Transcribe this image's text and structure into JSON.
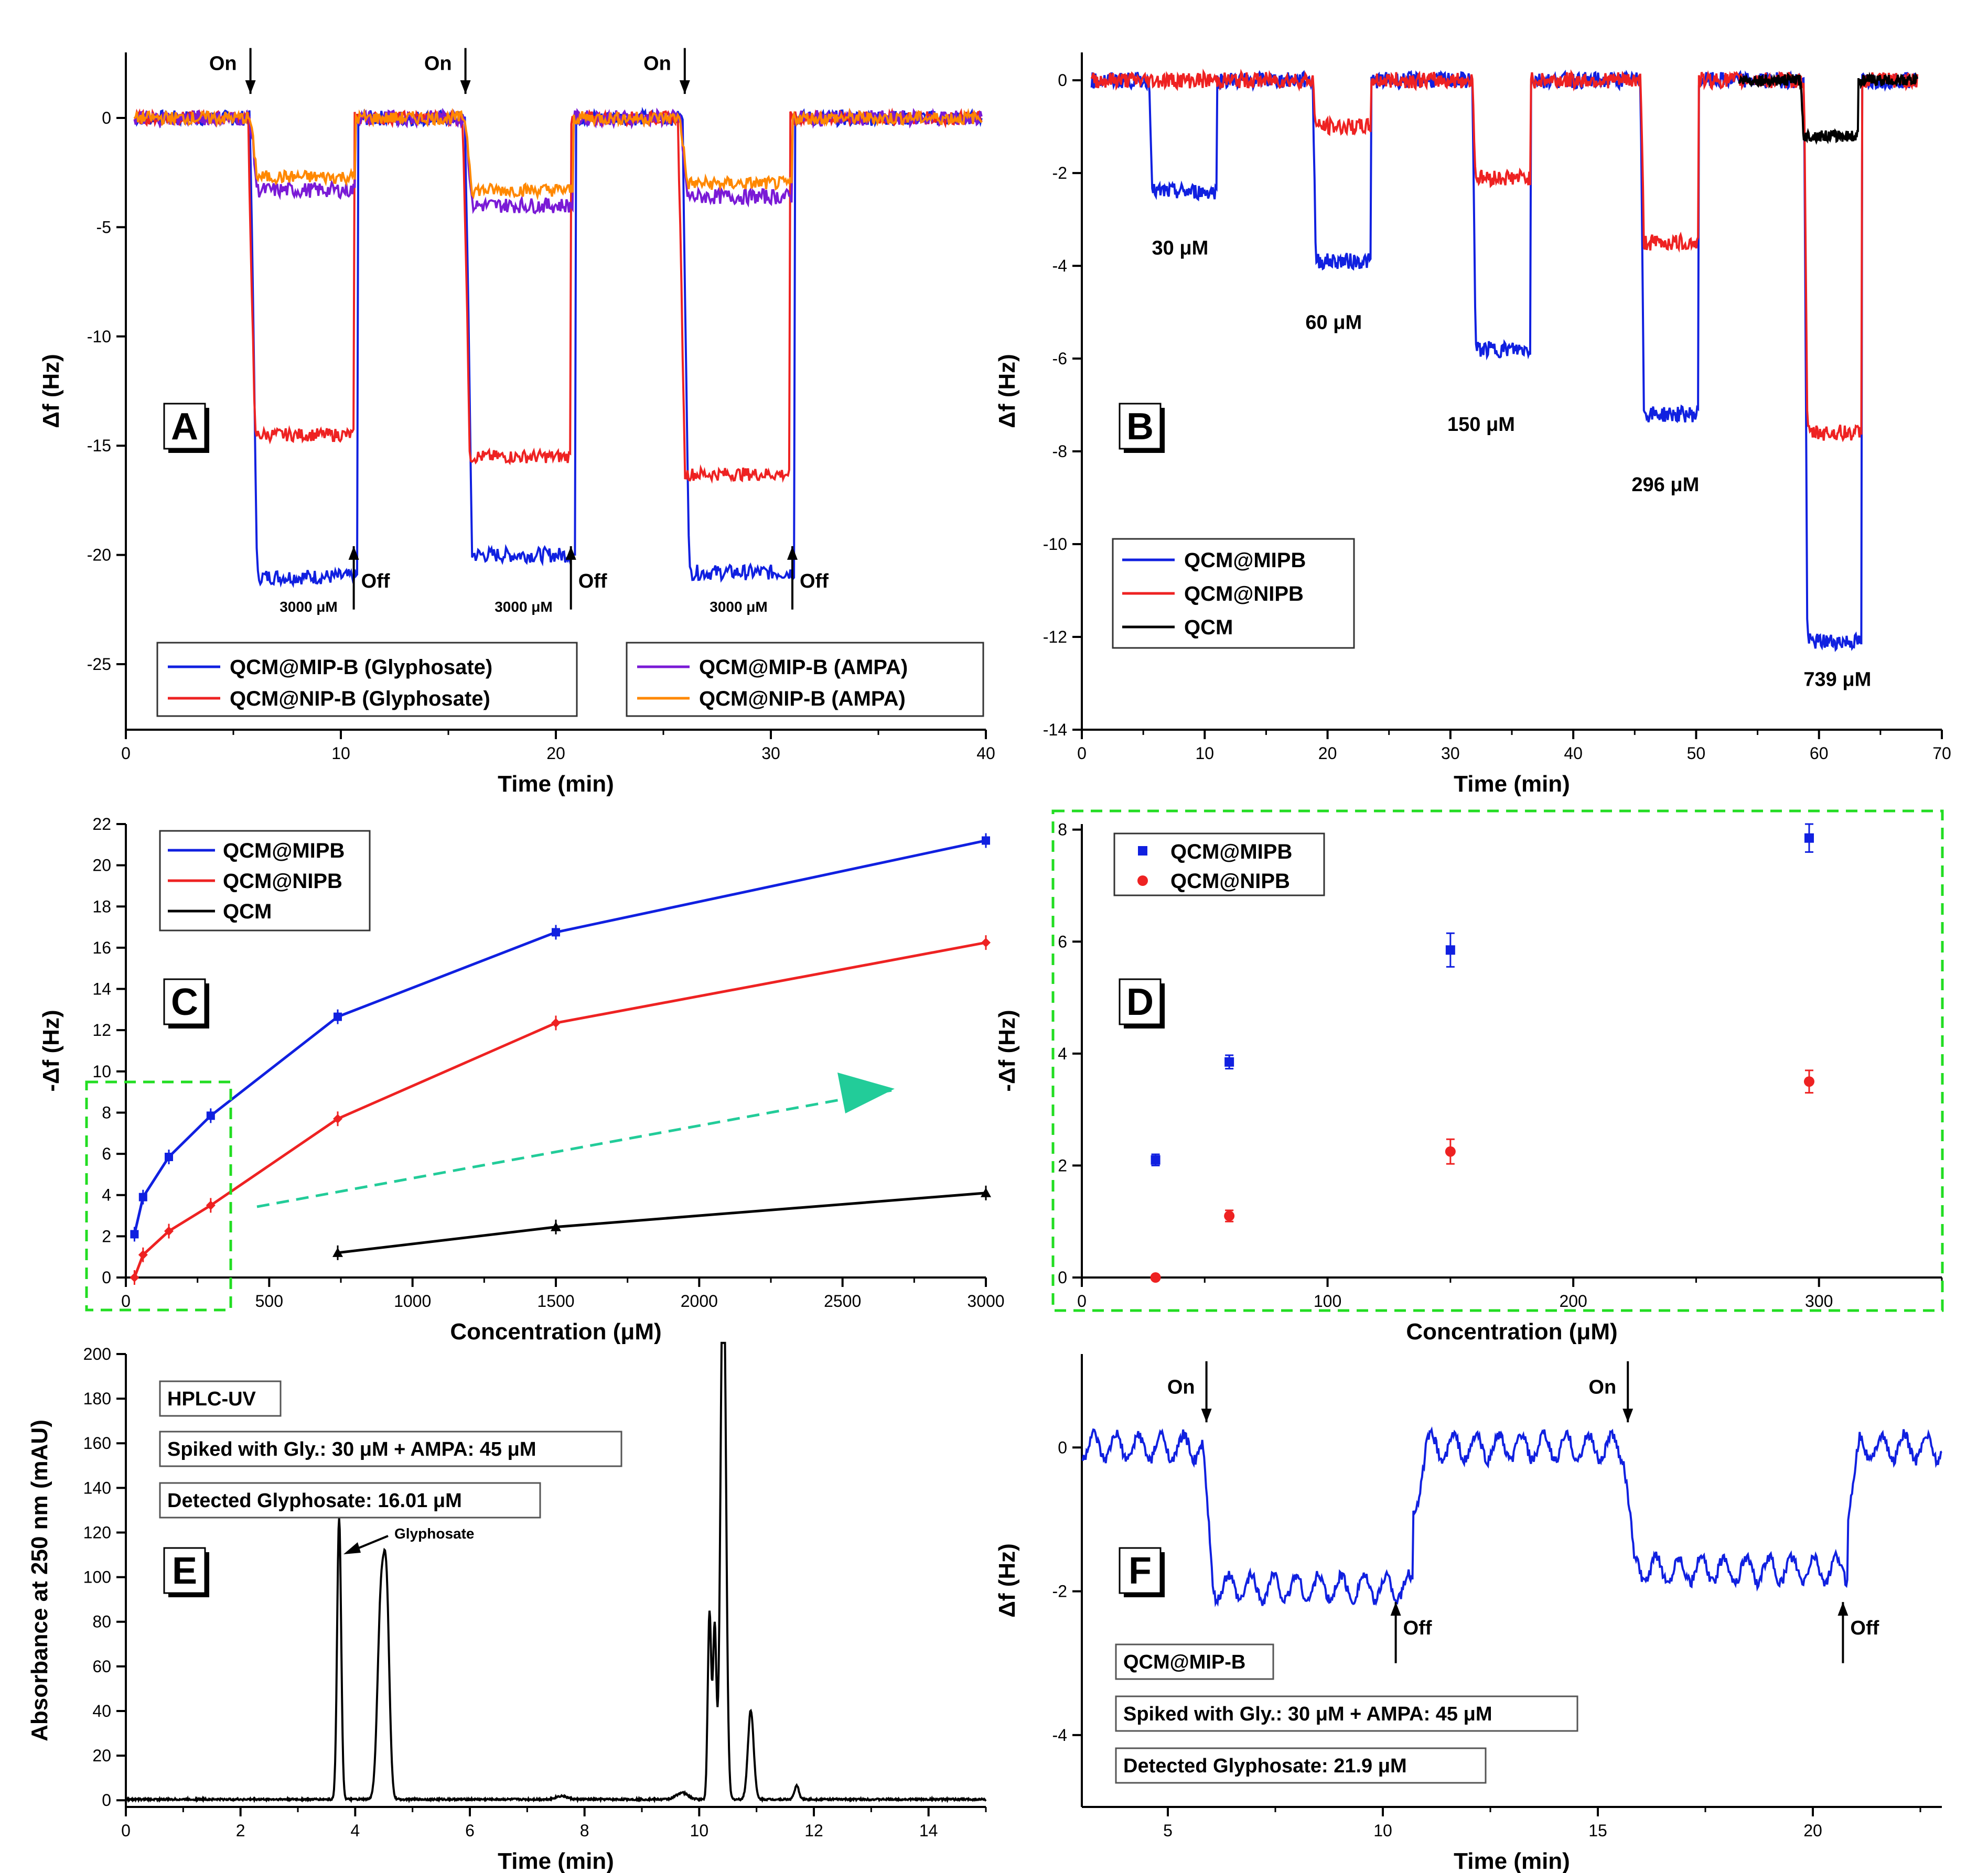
{
  "colors": {
    "blue": "#1020e0",
    "red": "#ee2222",
    "black": "#000000",
    "purple": "#7a1ad6",
    "orange": "#ff8800",
    "green_dash": "#22dd22",
    "arrow_teal": "#22cc99"
  },
  "panels": {
    "A": {
      "letter": "A",
      "xlabel": "Time (min)",
      "ylabel": "Δf (Hz)",
      "xlim": [
        0,
        40
      ],
      "ylim": [
        -28,
        3
      ],
      "xticks": [
        0,
        10,
        20,
        30,
        40
      ],
      "yticks": [
        0,
        -5,
        -10,
        -15,
        -20,
        -25
      ],
      "on_labels": [
        "On",
        "On",
        "On"
      ],
      "on_x": [
        5.6,
        15.6,
        25.8
      ],
      "off_labels": [
        "Off",
        "Off",
        "Off"
      ],
      "off_x": [
        10.6,
        20.7,
        31.0
      ],
      "conc_labels": [
        "3000 μM",
        "3000 μM",
        "3000 μM"
      ],
      "conc_x": [
        8.5,
        18.5,
        28.5
      ],
      "legend": [
        "QCM@MIP-B (Glyphosate)",
        "QCM@NIP-B (Glyphosate)",
        "QCM@MIP-B (AMPA)",
        "QCM@NIP-B (AMPA)"
      ],
      "series": [
        {
          "name": "QCM@MIP-B (Glyphosate)",
          "color": "blue",
          "baseline": 0,
          "pulses": [
            [
              5.8,
              10.8,
              -21
            ],
            [
              15.8,
              20.9,
              -20
            ],
            [
              25.9,
              31.1,
              -20.8
            ]
          ]
        },
        {
          "name": "QCM@NIP-B (Glyphosate)",
          "color": "red",
          "baseline": 0,
          "pulses": [
            [
              5.7,
              10.6,
              -14.5
            ],
            [
              15.7,
              20.7,
              -15.5
            ],
            [
              25.7,
              30.9,
              -16.3
            ]
          ]
        },
        {
          "name": "QCM@MIP-B (AMPA)",
          "color": "purple",
          "baseline": 0,
          "pulses": [
            [
              5.8,
              10.7,
              -3.3
            ],
            [
              15.8,
              20.8,
              -4.0
            ],
            [
              25.8,
              31.0,
              -3.6
            ]
          ]
        },
        {
          "name": "QCM@NIP-B (AMPA)",
          "color": "orange",
          "baseline": 0,
          "pulses": [
            [
              5.8,
              10.7,
              -2.7
            ],
            [
              15.8,
              20.8,
              -3.3
            ],
            [
              25.8,
              31.0,
              -3.0
            ]
          ]
        }
      ]
    },
    "B": {
      "letter": "B",
      "xlabel": "Time (min)",
      "ylabel": "Δf (Hz)",
      "xlim": [
        0,
        70
      ],
      "ylim": [
        -14,
        0.6
      ],
      "xticks": [
        0,
        10,
        20,
        30,
        40,
        50,
        60,
        70
      ],
      "yticks": [
        0,
        -2,
        -4,
        -6,
        -8,
        -10,
        -12,
        -14
      ],
      "conc_labels": [
        "30 μM",
        "60 μM",
        "150 μM",
        "296 μM",
        "739 μM"
      ],
      "conc_pos": [
        [
          8,
          -3.6
        ],
        [
          20.5,
          -5.2
        ],
        [
          32.5,
          -7.4
        ],
        [
          47.5,
          -8.7
        ],
        [
          61.5,
          -12.9
        ]
      ],
      "legend": [
        "QCM@MIPB",
        "QCM@NIPB",
        "QCM"
      ],
      "series": [
        {
          "name": "QCM@MIPB",
          "color": "blue",
          "pulses": [
            [
              5.5,
              11,
              -2.4
            ],
            [
              18.8,
              23.5,
              -3.9
            ],
            [
              31.8,
              36.5,
              -5.8
            ],
            [
              45.5,
              50.2,
              -7.2
            ],
            [
              58.8,
              63.5,
              -12.1
            ]
          ]
        },
        {
          "name": "QCM@NIPB",
          "color": "red",
          "pulses": [
            [
              18.8,
              23.5,
              -1
            ],
            [
              31.8,
              36.5,
              -2.1
            ],
            [
              45.5,
              50.2,
              -3.5
            ],
            [
              58.8,
              63.5,
              -7.6
            ]
          ]
        },
        {
          "name": "QCM",
          "color": "black",
          "start": 53.5,
          "pulses": [
            [
              58.5,
              63.2,
              -1.2
            ]
          ]
        }
      ]
    },
    "C": {
      "letter": "C",
      "xlabel": "Concentration (μM)",
      "ylabel": "-Δf (Hz)",
      "xlim": [
        0,
        3000
      ],
      "ylim": [
        0,
        22
      ],
      "xticks": [
        500,
        1000,
        1500,
        2000,
        2500,
        3000
      ],
      "xtick0": "0",
      "yticks": [
        0,
        2,
        4,
        6,
        8,
        10,
        12,
        14,
        16,
        18,
        20,
        22
      ],
      "legend": [
        "QCM@MIPB",
        "QCM@NIPB",
        "QCM"
      ],
      "series": [
        {
          "name": "QCM@MIPB",
          "color": "blue",
          "x": [
            30,
            60,
            150,
            296,
            739,
            1500,
            3000
          ],
          "y": [
            2.1,
            3.9,
            5.85,
            7.85,
            12.65,
            16.75,
            21.2
          ]
        },
        {
          "name": "QCM@NIPB",
          "color": "red",
          "x": [
            30,
            60,
            150,
            296,
            739,
            1500,
            3000
          ],
          "y": [
            0,
            1.1,
            2.25,
            3.5,
            7.7,
            12.35,
            16.25
          ]
        },
        {
          "name": "QCM",
          "color": "black",
          "x": [
            739,
            1500,
            3000
          ],
          "y": [
            1.2,
            2.45,
            4.1
          ]
        }
      ]
    },
    "D": {
      "letter": "D",
      "xlabel": "Concentration (μM)",
      "ylabel": "-Δf (Hz)",
      "xlim": [
        0,
        350
      ],
      "ylim": [
        0,
        8.1
      ],
      "xticks": [
        0,
        100,
        200,
        300
      ],
      "yticks": [
        0,
        2,
        4,
        6,
        8
      ],
      "legend": [
        "QCM@MIPB",
        "QCM@NIPB"
      ],
      "series": [
        {
          "name": "QCM@MIPB",
          "color": "blue",
          "x": [
            30,
            60,
            150,
            296
          ],
          "y": [
            2.1,
            3.85,
            5.85,
            7.85
          ],
          "err": [
            0.1,
            0.12,
            0.3,
            0.25
          ]
        },
        {
          "name": "QCM@NIPB",
          "color": "red",
          "x": [
            30,
            60,
            150,
            296
          ],
          "y": [
            0,
            1.1,
            2.25,
            3.5
          ],
          "err": [
            0.02,
            0.1,
            0.22,
            0.2
          ]
        }
      ]
    },
    "E": {
      "letter": "E",
      "xlabel": "Time (min)",
      "ylabel": "Absorbance at 250 nm (mAU)",
      "xlim": [
        0,
        15
      ],
      "ylim": [
        -3,
        200
      ],
      "xticks": [
        0,
        2,
        4,
        6,
        8,
        10,
        12,
        14
      ],
      "yticks": [
        0,
        20,
        40,
        60,
        80,
        100,
        120,
        140,
        160,
        180,
        200
      ],
      "boxes": [
        "HPLC-UV",
        "Spiked with Gly.: 30 μM + AMPA: 45 μM",
        "Detected Glyphosate: 16.01 μM"
      ],
      "peak_label": "Glyphosate",
      "peaks": [
        [
          3.72,
          126,
          0.035
        ],
        [
          4.45,
          88,
          0.06
        ],
        [
          4.55,
          80,
          0.05
        ],
        [
          10.18,
          84,
          0.03
        ],
        [
          10.27,
          78,
          0.03
        ],
        [
          10.42,
          260,
          0.045
        ],
        [
          10.9,
          40,
          0.05
        ],
        [
          11.7,
          6,
          0.04
        ],
        [
          9.7,
          3,
          0.1
        ],
        [
          7.6,
          1.5,
          0.1
        ]
      ]
    },
    "F": {
      "letter": "F",
      "xlabel": "Time (min)",
      "ylabel": "Δf (Hz)",
      "xlim": [
        3,
        23
      ],
      "ylim": [
        -5,
        1.3
      ],
      "xticks": [
        5,
        10,
        15,
        20
      ],
      "yticks": [
        0,
        -2,
        -4
      ],
      "on_labels": [
        "On",
        "On"
      ],
      "on_x": [
        5.8,
        15.6
      ],
      "off_labels": [
        "Off",
        "Off"
      ],
      "off_x": [
        10.3,
        20.7
      ],
      "boxes": [
        "QCM@MIP-B",
        "Spiked with Gly.: 30 μM + AMPA: 45 μM",
        "Detected Glyphosate: 21.9 μM"
      ],
      "series": [
        {
          "name": "QCM@MIP-B",
          "color": "blue",
          "pulses": [
            [
              5.8,
              10.7,
              -1.95
            ],
            [
              15.6,
              20.8,
              -1.7
            ]
          ]
        }
      ]
    }
  }
}
